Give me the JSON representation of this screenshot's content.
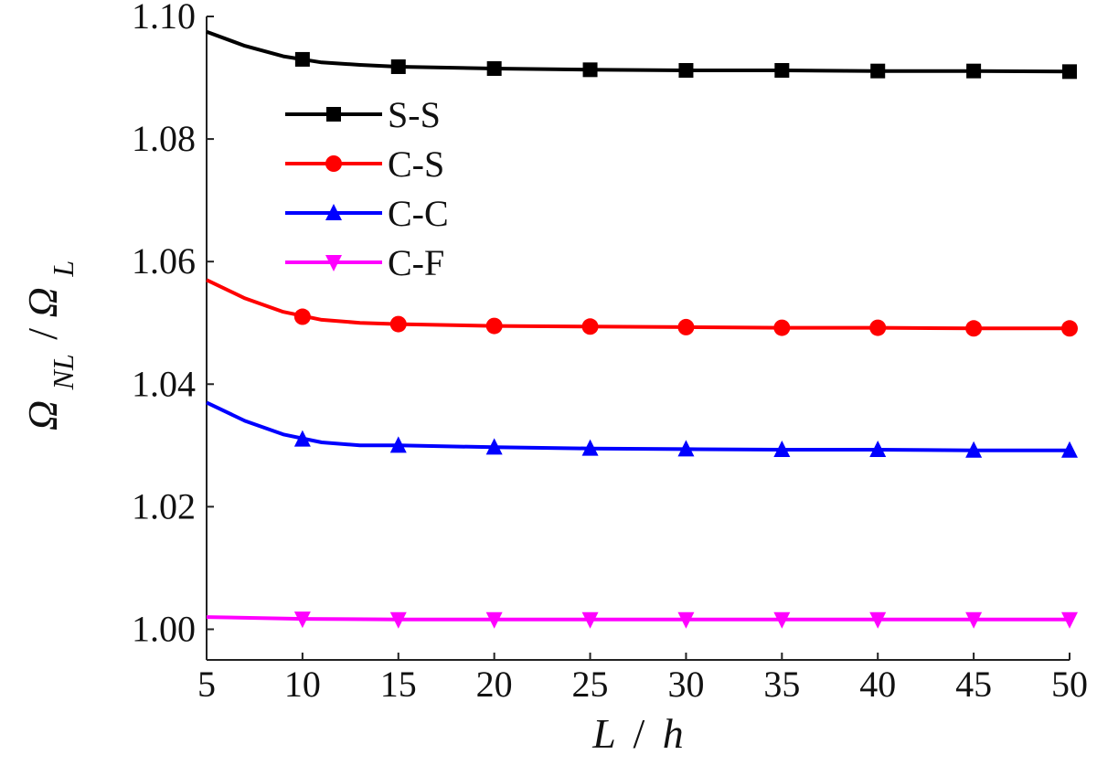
{
  "chart_data": {
    "type": "line",
    "title": "",
    "xlabel_main": "L",
    "xlabel_sep": "/",
    "xlabel_den": "h",
    "ylabel_num": "Ω",
    "ylabel_num_sub": "NL",
    "ylabel_sep": "/",
    "ylabel_den": "Ω",
    "ylabel_den_sub": "L",
    "xlim": [
      5,
      50
    ],
    "ylim": [
      0.995,
      1.1
    ],
    "x_ticks": [
      "5",
      "10",
      "15",
      "20",
      "25",
      "30",
      "35",
      "40",
      "45",
      "50"
    ],
    "x_tick_values": [
      5,
      10,
      15,
      20,
      25,
      30,
      35,
      40,
      45,
      50
    ],
    "y_ticks": [
      "1.00",
      "1.02",
      "1.04",
      "1.06",
      "1.08",
      "1.10"
    ],
    "y_tick_values": [
      1.0,
      1.02,
      1.04,
      1.06,
      1.08,
      1.1
    ],
    "grid": false,
    "legend_position": "upper-left",
    "x": [
      5,
      10,
      15,
      20,
      25,
      30,
      35,
      40,
      45,
      50
    ],
    "series": [
      {
        "name": "S-S",
        "color": "#000000",
        "marker": "square",
        "curve": [
          [
            5,
            1.0975
          ],
          [
            7,
            1.0952
          ],
          [
            9,
            1.0935
          ],
          [
            11,
            1.0925
          ],
          [
            13,
            1.0921
          ],
          [
            15,
            1.0918
          ],
          [
            20,
            1.0915
          ],
          [
            25,
            1.0913
          ],
          [
            30,
            1.0912
          ],
          [
            35,
            1.0912
          ],
          [
            40,
            1.0911
          ],
          [
            45,
            1.0911
          ],
          [
            50,
            1.091
          ]
        ],
        "values": [
          1.0975,
          1.093,
          1.0918,
          1.0915,
          1.0913,
          1.0912,
          1.0912,
          1.0911,
          1.0911,
          1.091
        ]
      },
      {
        "name": "C-S",
        "color": "#ff0000",
        "marker": "circle",
        "curve": [
          [
            5,
            1.057
          ],
          [
            7,
            1.054
          ],
          [
            9,
            1.0518
          ],
          [
            11,
            1.0505
          ],
          [
            13,
            1.05
          ],
          [
            15,
            1.0498
          ],
          [
            20,
            1.0495
          ],
          [
            25,
            1.0494
          ],
          [
            30,
            1.0493
          ],
          [
            35,
            1.0492
          ],
          [
            40,
            1.0492
          ],
          [
            45,
            1.0491
          ],
          [
            50,
            1.0491
          ]
        ],
        "values": [
          1.057,
          1.051,
          1.0498,
          1.0495,
          1.0494,
          1.0493,
          1.0492,
          1.0492,
          1.0491,
          1.0491
        ]
      },
      {
        "name": "C-C",
        "color": "#0000ff",
        "marker": "triangle-up",
        "curve": [
          [
            5,
            1.037
          ],
          [
            7,
            1.034
          ],
          [
            9,
            1.0318
          ],
          [
            11,
            1.0305
          ],
          [
            13,
            1.03
          ],
          [
            15,
            1.03
          ],
          [
            20,
            1.0297
          ],
          [
            25,
            1.0295
          ],
          [
            30,
            1.0294
          ],
          [
            35,
            1.0293
          ],
          [
            40,
            1.0293
          ],
          [
            45,
            1.0292
          ],
          [
            50,
            1.0292
          ]
        ],
        "values": [
          1.037,
          1.031,
          1.03,
          1.0297,
          1.0295,
          1.0294,
          1.0293,
          1.0293,
          1.0292,
          1.0292
        ]
      },
      {
        "name": "C-F",
        "color": "#ff00ff",
        "marker": "triangle-down",
        "curve": [
          [
            5,
            1.002
          ],
          [
            10,
            1.0017
          ],
          [
            15,
            1.0016
          ],
          [
            20,
            1.0016
          ],
          [
            25,
            1.0016
          ],
          [
            30,
            1.0016
          ],
          [
            35,
            1.0016
          ],
          [
            40,
            1.0016
          ],
          [
            45,
            1.0016
          ],
          [
            50,
            1.0016
          ]
        ],
        "values": [
          1.002,
          1.0017,
          1.0016,
          1.0016,
          1.0016,
          1.0016,
          1.0016,
          1.0016,
          1.0016,
          1.0016
        ]
      }
    ]
  }
}
